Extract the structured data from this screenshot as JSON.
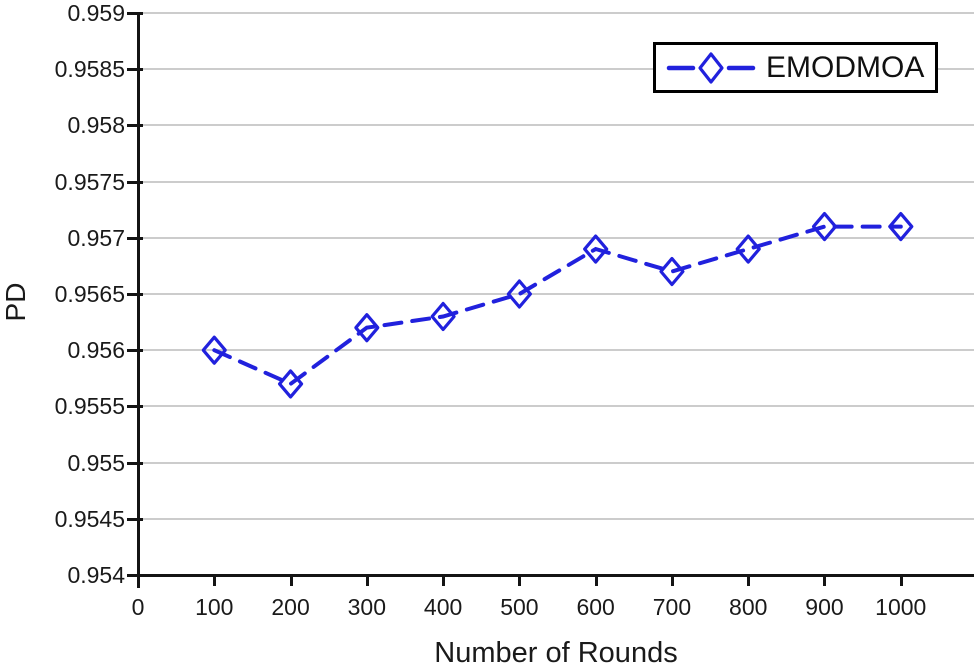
{
  "chart_data": {
    "type": "line",
    "title": "",
    "xlabel": "Number of Rounds",
    "ylabel": "PD",
    "x": [
      100,
      200,
      300,
      400,
      500,
      600,
      700,
      800,
      900,
      1000
    ],
    "series": [
      {
        "name": "EMODMOA",
        "color": "#2121dd",
        "line_style": "dashed",
        "marker": "open-diamond",
        "values": [
          0.956,
          0.9557,
          0.9562,
          0.9563,
          0.9565,
          0.9569,
          0.9567,
          0.9569,
          0.9571,
          0.9571
        ]
      }
    ],
    "xlim": [
      0,
      1096
    ],
    "ylim": [
      0.954,
      0.959
    ],
    "xticks": [
      0,
      100,
      200,
      300,
      400,
      500,
      600,
      700,
      800,
      900,
      1000
    ],
    "xtick_labels": [
      "0",
      "100",
      "200",
      "300",
      "400",
      "500",
      "600",
      "700",
      "800",
      "900",
      "1000"
    ],
    "yticks": [
      0.954,
      0.9545,
      0.955,
      0.9555,
      0.956,
      0.9565,
      0.957,
      0.9575,
      0.958,
      0.9585,
      0.959
    ],
    "ytick_labels": [
      "0.954",
      "0.9545",
      "0.955",
      "0.9555",
      "0.956",
      "0.9565",
      "0.957",
      "0.9575",
      "0.958",
      "0.9585",
      "0.959"
    ],
    "grid": "horizontal-only",
    "legend": {
      "label": "EMODMOA",
      "position": "top-right"
    }
  },
  "colors": {
    "series_line": "#2121dd",
    "gridline": "#cccccc",
    "axis": "#141414",
    "tick_text": "#1a1a1a",
    "legend_border": "#000000",
    "background": "#ffffff"
  }
}
